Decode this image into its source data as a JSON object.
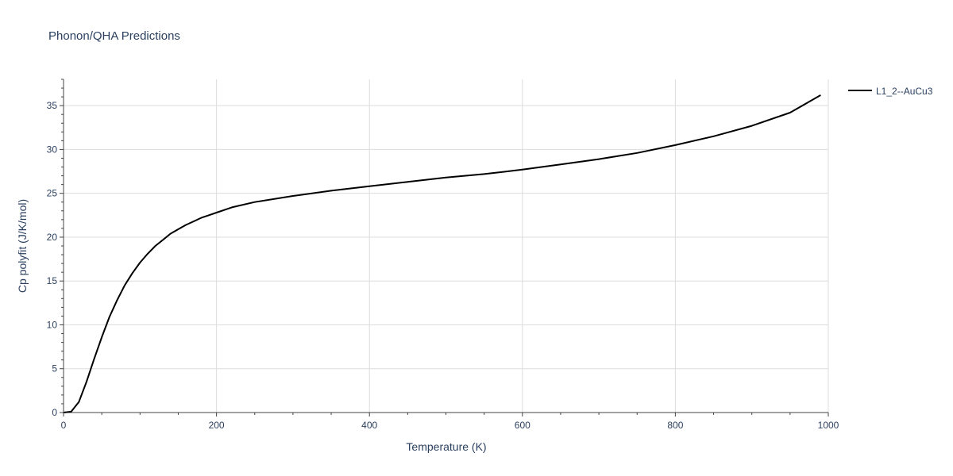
{
  "colors": {
    "series": "#000000",
    "grid": "#dddddd",
    "text": "#2a3f5f",
    "axis": "#444444"
  },
  "chart_data": {
    "type": "line",
    "title": "Phonon/QHA Predictions",
    "xlabel": "Temperature (K)",
    "ylabel": "Cp polyfit (J/K/mol)",
    "xlim": [
      0,
      1000
    ],
    "ylim": [
      0,
      38
    ],
    "xticks": [
      0,
      200,
      400,
      600,
      800,
      1000
    ],
    "yticks": [
      0,
      5,
      10,
      15,
      20,
      25,
      30,
      35
    ],
    "grid": true,
    "legend_position": "top-right",
    "series": [
      {
        "name": "L1_2--AuCu3",
        "x": [
          0,
          10,
          20,
          30,
          40,
          50,
          60,
          70,
          80,
          90,
          100,
          110,
          120,
          130,
          140,
          150,
          160,
          170,
          180,
          190,
          200,
          220,
          250,
          300,
          350,
          400,
          450,
          500,
          550,
          600,
          650,
          700,
          750,
          800,
          850,
          900,
          950,
          990
        ],
        "y": [
          0,
          0.1,
          1.2,
          3.5,
          6.1,
          8.6,
          10.9,
          12.8,
          14.5,
          15.9,
          17.1,
          18.1,
          19.0,
          19.7,
          20.4,
          20.9,
          21.4,
          21.8,
          22.2,
          22.5,
          22.8,
          23.4,
          24.0,
          24.7,
          25.3,
          25.8,
          26.3,
          26.8,
          27.2,
          27.7,
          28.3,
          28.9,
          29.6,
          30.5,
          31.5,
          32.7,
          34.2,
          36.2
        ]
      }
    ]
  }
}
